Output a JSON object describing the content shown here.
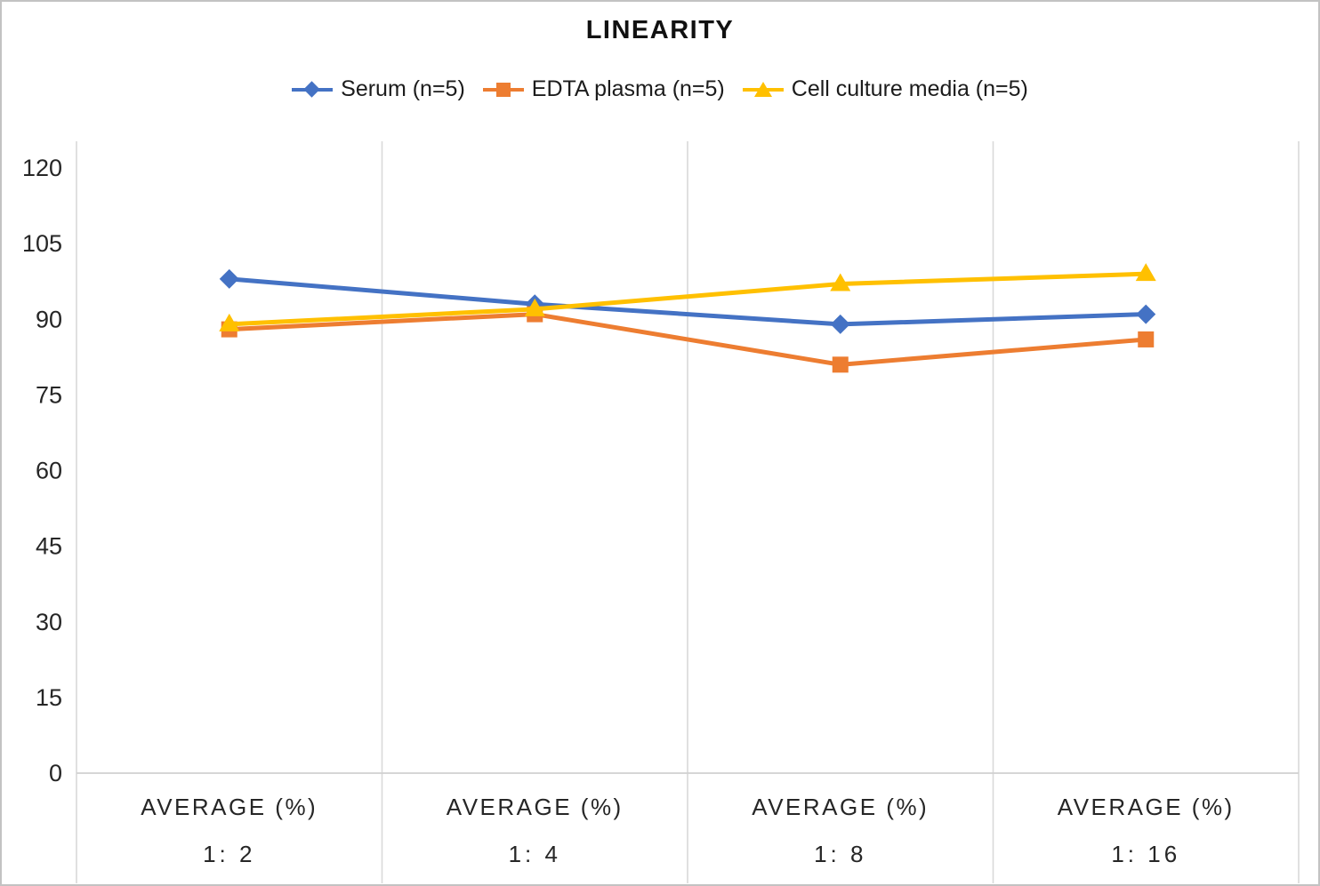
{
  "title": "LINEARITY",
  "chart_data": {
    "type": "line",
    "title": "LINEARITY",
    "xlabel": "",
    "ylabel": "",
    "ylim": [
      0,
      120
    ],
    "y_ticks": [
      0,
      15,
      30,
      45,
      60,
      75,
      90,
      105,
      120
    ],
    "grid": "vertical-only",
    "legend_position": "top-center",
    "categories": [
      {
        "line1": "AVERAGE (%)",
        "line2": "1: 2"
      },
      {
        "line1": "AVERAGE (%)",
        "line2": "1: 4"
      },
      {
        "line1": "AVERAGE (%)",
        "line2": "1: 8"
      },
      {
        "line1": "AVERAGE (%)",
        "line2": "1: 16"
      }
    ],
    "series": [
      {
        "name": "Serum (n=5)",
        "marker": "diamond",
        "color": "#4472C4",
        "values": [
          98,
          93,
          89,
          91
        ]
      },
      {
        "name": "EDTA plasma (n=5)",
        "marker": "square",
        "color": "#ED7D31",
        "values": [
          88,
          91,
          81,
          86
        ]
      },
      {
        "name": "Cell culture media (n=5)",
        "marker": "triangle",
        "color": "#FFC000",
        "values": [
          89,
          92,
          97,
          99
        ]
      }
    ],
    "colors": {
      "gridline": "#D9D9D9",
      "axis_line": "#D0D0D0",
      "tick_text": "#262626",
      "title_text": "#111111"
    }
  }
}
